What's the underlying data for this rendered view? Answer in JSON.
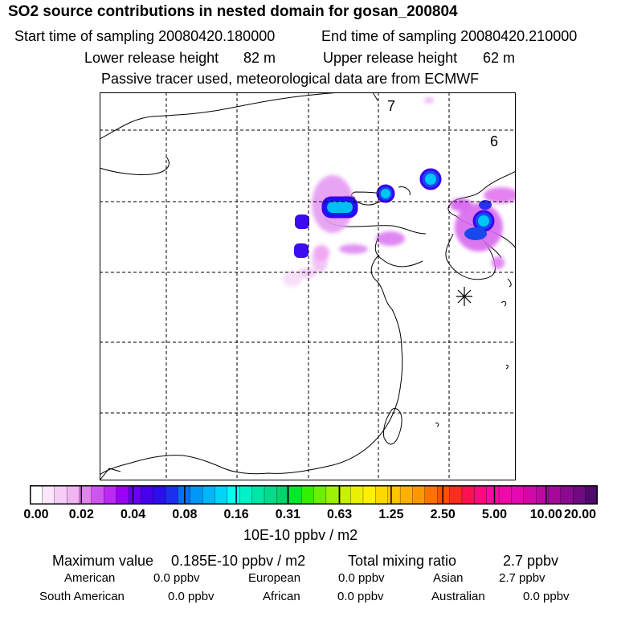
{
  "title": "SO2 source contributions in nested domain for gosan_200804",
  "sampling": {
    "start_label": "Start time of sampling 20080420.180000",
    "end_label": "End time of sampling 20080420.210000"
  },
  "release": {
    "lower_label": "Lower release height",
    "lower_value": "82 m",
    "upper_label": "Upper release height",
    "upper_value": "62 m"
  },
  "tracer_note": "Passive tracer used, meteorological data are from ECMWF",
  "map": {
    "labels": {
      "contour_7": "7",
      "contour_6": "6"
    }
  },
  "colorbar": {
    "ticks": [
      "0.00",
      "0.02",
      "0.04",
      "0.08",
      "0.16",
      "0.31",
      "0.63",
      "1.25",
      "2.50",
      "5.00",
      "10.00",
      "20.00"
    ],
    "colors": [
      "#ffffff",
      "#fbe6fb",
      "#f6cdf6",
      "#f0b4f0",
      "#e184ef",
      "#cf55f2",
      "#bb2bf4",
      "#9d00f7",
      "#6a00f3",
      "#4600ee",
      "#2d0ced",
      "#1a30ee",
      "#0070f5",
      "#0098f7",
      "#00b6f8",
      "#00d4f8",
      "#00fef0",
      "#00f2c8",
      "#00e6a4",
      "#00dc8a",
      "#00d46a",
      "#00e82a",
      "#32f000",
      "#6cf000",
      "#9cf000",
      "#c8f000",
      "#eaf000",
      "#fff000",
      "#ffd800",
      "#ffc400",
      "#ffb000",
      "#ff9800",
      "#ff7400",
      "#ff5000",
      "#ff2c20",
      "#ff1050",
      "#ff0a80",
      "#fc0aa0",
      "#f00aaa",
      "#e20ab2",
      "#d00aa8",
      "#bc0aa0",
      "#a6099a",
      "#8c0a90",
      "#700a80",
      "#500a6c"
    ],
    "unit": "10E-10 ppbv / m2"
  },
  "summary": {
    "max_label": "Maximum value",
    "max_value": "0.185E-10 ppbv / m2",
    "total_label": "Total mixing ratio",
    "total_value": "2.7 ppbv"
  },
  "regions": {
    "american_label": "American",
    "american_value": "0.0 ppbv",
    "european_label": "European",
    "european_value": "0.0 ppbv",
    "asian_label": "Asian",
    "asian_value": "2.7 ppbv",
    "south_american_label": "South American",
    "south_american_value": "0.0 ppbv",
    "african_label": "African",
    "african_value": "0.0 ppbv",
    "australian_label": "Australian",
    "australian_value": "0.0 ppbv"
  }
}
